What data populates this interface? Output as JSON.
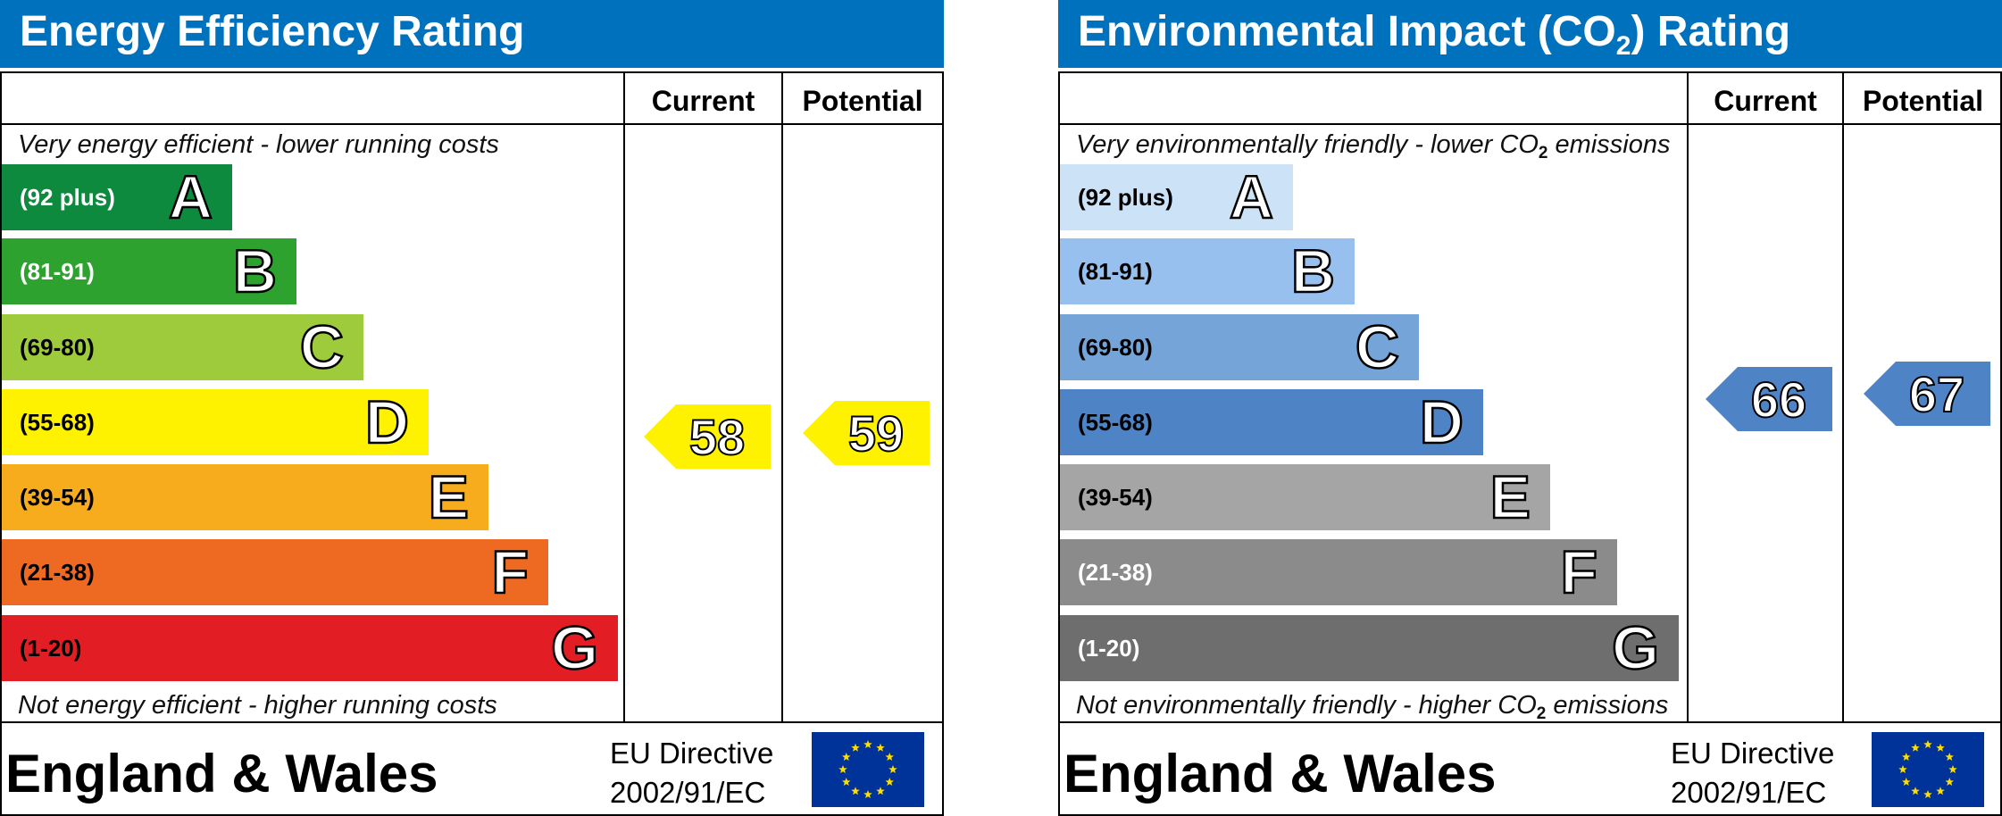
{
  "energy": {
    "title": "Energy Efficiency Rating",
    "col_current": "Current",
    "col_potential": "Potential",
    "top_note": "Very energy efficient - lower running costs",
    "bottom_note": "Not energy efficient - higher running costs",
    "footer": "England & Wales",
    "directive_line1": "EU Directive",
    "directive_line2": "2002/91/EC"
  },
  "env": {
    "title_pre": "Environmental Impact (CO",
    "title_sub": "2",
    "title_post": ") Rating",
    "col_current": "Current",
    "col_potential": "Potential",
    "top_note_pre": "Very environmentally friendly - lower CO",
    "top_note_sub": "2",
    "top_note_post": " emissions",
    "bottom_note_pre": "Not environmentally friendly - higher CO",
    "bottom_note_sub": "2",
    "bottom_note_post": " emissions",
    "footer": "England & Wales",
    "directive_line1": "EU Directive",
    "directive_line2": "2002/91/EC"
  },
  "chart_data": [
    {
      "type": "bar",
      "title": "Energy Efficiency Rating",
      "categories": [
        "A",
        "B",
        "C",
        "D",
        "E",
        "F",
        "G"
      ],
      "ranges": [
        "(92 plus)",
        "(81-91)",
        "(69-80)",
        "(55-68)",
        "(39-54)",
        "(21-38)",
        "(1-20)"
      ],
      "colors": [
        "#008054",
        "#19b459",
        "#8dce46",
        "#ffd500",
        "#fcaa65",
        "#ef8023",
        "#e9153b"
      ],
      "bar_colors": [
        "#0e8a3e",
        "#2ea22f",
        "#9ecb3c",
        "#fff200",
        "#f7ac1e",
        "#ee6a23",
        "#e31d24"
      ],
      "range_text_colors": [
        "#ffffff",
        "#ffffff",
        "#000000",
        "#000000",
        "#000000",
        "#000000",
        "#000000"
      ],
      "letter_colors": [
        "#ffffff",
        "#ffffff",
        "#ffffff",
        "#ffffff",
        "#ffffff",
        "#ffffff",
        "#ffffff"
      ],
      "current": 58,
      "potential": 59,
      "arrow_color": "#fff200",
      "arrow_text_color": "#ffffff"
    },
    {
      "type": "bar",
      "title": "Environmental Impact (CO2) Rating",
      "categories": [
        "A",
        "B",
        "C",
        "D",
        "E",
        "F",
        "G"
      ],
      "ranges": [
        "(92 plus)",
        "(81-91)",
        "(69-80)",
        "(55-68)",
        "(39-54)",
        "(21-38)",
        "(1-20)"
      ],
      "bar_colors": [
        "#cce2f6",
        "#97c0ee",
        "#75a4d8",
        "#4e84c5",
        "#a5a5a5",
        "#8b8b8b",
        "#6e6e6e"
      ],
      "range_text_colors": [
        "#000000",
        "#000000",
        "#000000",
        "#000000",
        "#000000",
        "#ffffff",
        "#ffffff"
      ],
      "letter_colors": [
        "#ffffff",
        "#ffffff",
        "#ffffff",
        "#ffffff",
        "#ffffff",
        "#ffffff",
        "#ffffff"
      ],
      "current": 66,
      "potential": 67,
      "arrow_color": "#4e84c5",
      "arrow_text_color": "#ffffff"
    }
  ]
}
